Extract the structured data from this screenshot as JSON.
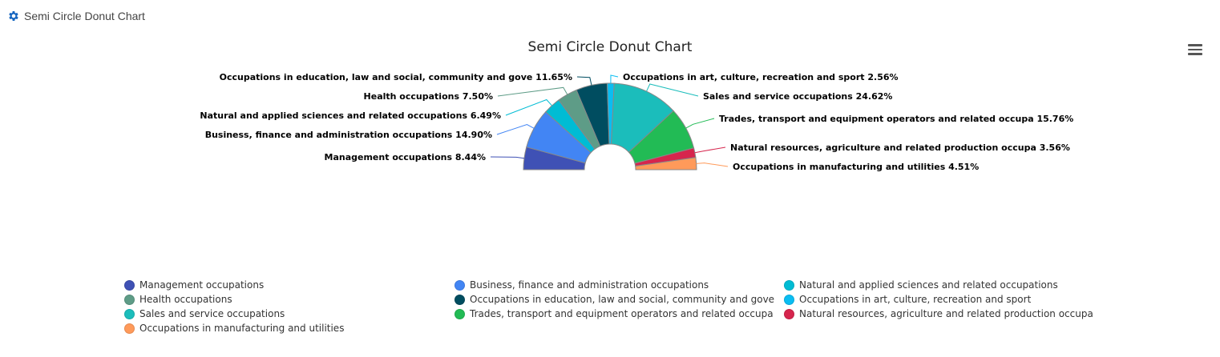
{
  "header": {
    "icon": "gear-icon",
    "title": "Semi Circle Donut Chart"
  },
  "menu": {
    "icon": "hamburger-menu-icon"
  },
  "chart_data": {
    "type": "pie",
    "variant": "semi-circle donut",
    "title": "Semi Circle Donut Chart",
    "legend_position": "bottom",
    "slices": [
      {
        "name": "Management occupations",
        "value": 8.44,
        "label": "Management occupations 8.44%",
        "color": "#3f51b5"
      },
      {
        "name": "Business, finance and administration occupations",
        "value": 14.9,
        "label": "Business, finance and administration occupations 14.90%",
        "color": "#4285f4"
      },
      {
        "name": "Natural and applied sciences and related occupations",
        "value": 6.49,
        "label": "Natural and applied sciences and related occupations 6.49%",
        "color": "#00bcd4"
      },
      {
        "name": "Health occupations",
        "value": 7.5,
        "label": "Health occupations 7.50%",
        "color": "#5e9c87"
      },
      {
        "name": "Occupations in education, law and social, community and gove",
        "value": 11.65,
        "label": "Occupations in education, law and social, community and gove 11.65%",
        "color": "#004d60"
      },
      {
        "name": "Occupations in art, culture, recreation and sport",
        "value": 2.56,
        "label": "Occupations in art, culture, recreation and sport 2.56%",
        "color": "#0abdf2"
      },
      {
        "name": "Sales and service occupations",
        "value": 24.62,
        "label": "Sales and service occupations 24.62%",
        "color": "#1bbdbb"
      },
      {
        "name": "Trades, transport and equipment operators and related occupa",
        "value": 15.76,
        "label": "Trades, transport and equipment operators and related occupa 15.76%",
        "color": "#22bb55"
      },
      {
        "name": "Natural resources, agriculture and related production occupa",
        "value": 3.56,
        "label": "Natural resources, agriculture and related production occupa 3.56%",
        "color": "#d6254d"
      },
      {
        "name": "Occupations in manufacturing and utilities",
        "value": 4.51,
        "label": "Occupations in manufacturing and utilities 4.51%",
        "color": "#ff9a5a"
      }
    ]
  }
}
